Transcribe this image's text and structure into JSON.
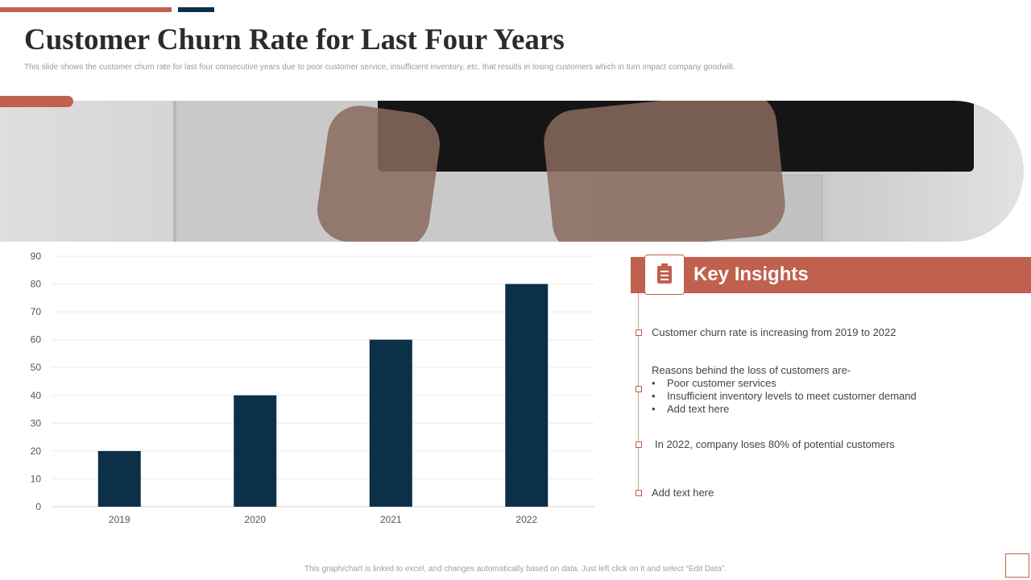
{
  "slide": {
    "title": "Customer Churn Rate for Last Four Years",
    "subtitle": "This slide shows the customer churn rate for last four consecutive years due to poor customer service, insufficient inventory, etc. that results in losing customers which in turn impact company goodwill.",
    "footer_note": "This graph/chart is linked to excel, and changes automatically based on data. Just left click on it and select “Edit Data”."
  },
  "colors": {
    "accent": "#c0604e",
    "bar": "#0b3048",
    "navy": "#0b3048"
  },
  "insights": {
    "title": "Key Insights",
    "icon": "clipboard-icon",
    "item1": "Customer churn rate is increasing from 2019 to 2022",
    "item2_heading": "Reasons behind the loss of customers are-",
    "item2_bullets": [
      "Poor customer services",
      "Insufficient  inventory levels to meet customer demand",
      "Add text here"
    ],
    "bullet_symbol": "•",
    "item3": "In 2022, company loses 80% of potential customers",
    "item4": "Add text here"
  },
  "chart_data": {
    "type": "bar",
    "categories": [
      "2019",
      "2020",
      "2021",
      "2022"
    ],
    "values": [
      20,
      40,
      60,
      80
    ],
    "ylim": [
      0,
      90
    ],
    "yticks": [
      0,
      10,
      20,
      30,
      40,
      50,
      60,
      70,
      80,
      90
    ],
    "grid": true,
    "title": "",
    "xlabel": "",
    "ylabel": ""
  }
}
